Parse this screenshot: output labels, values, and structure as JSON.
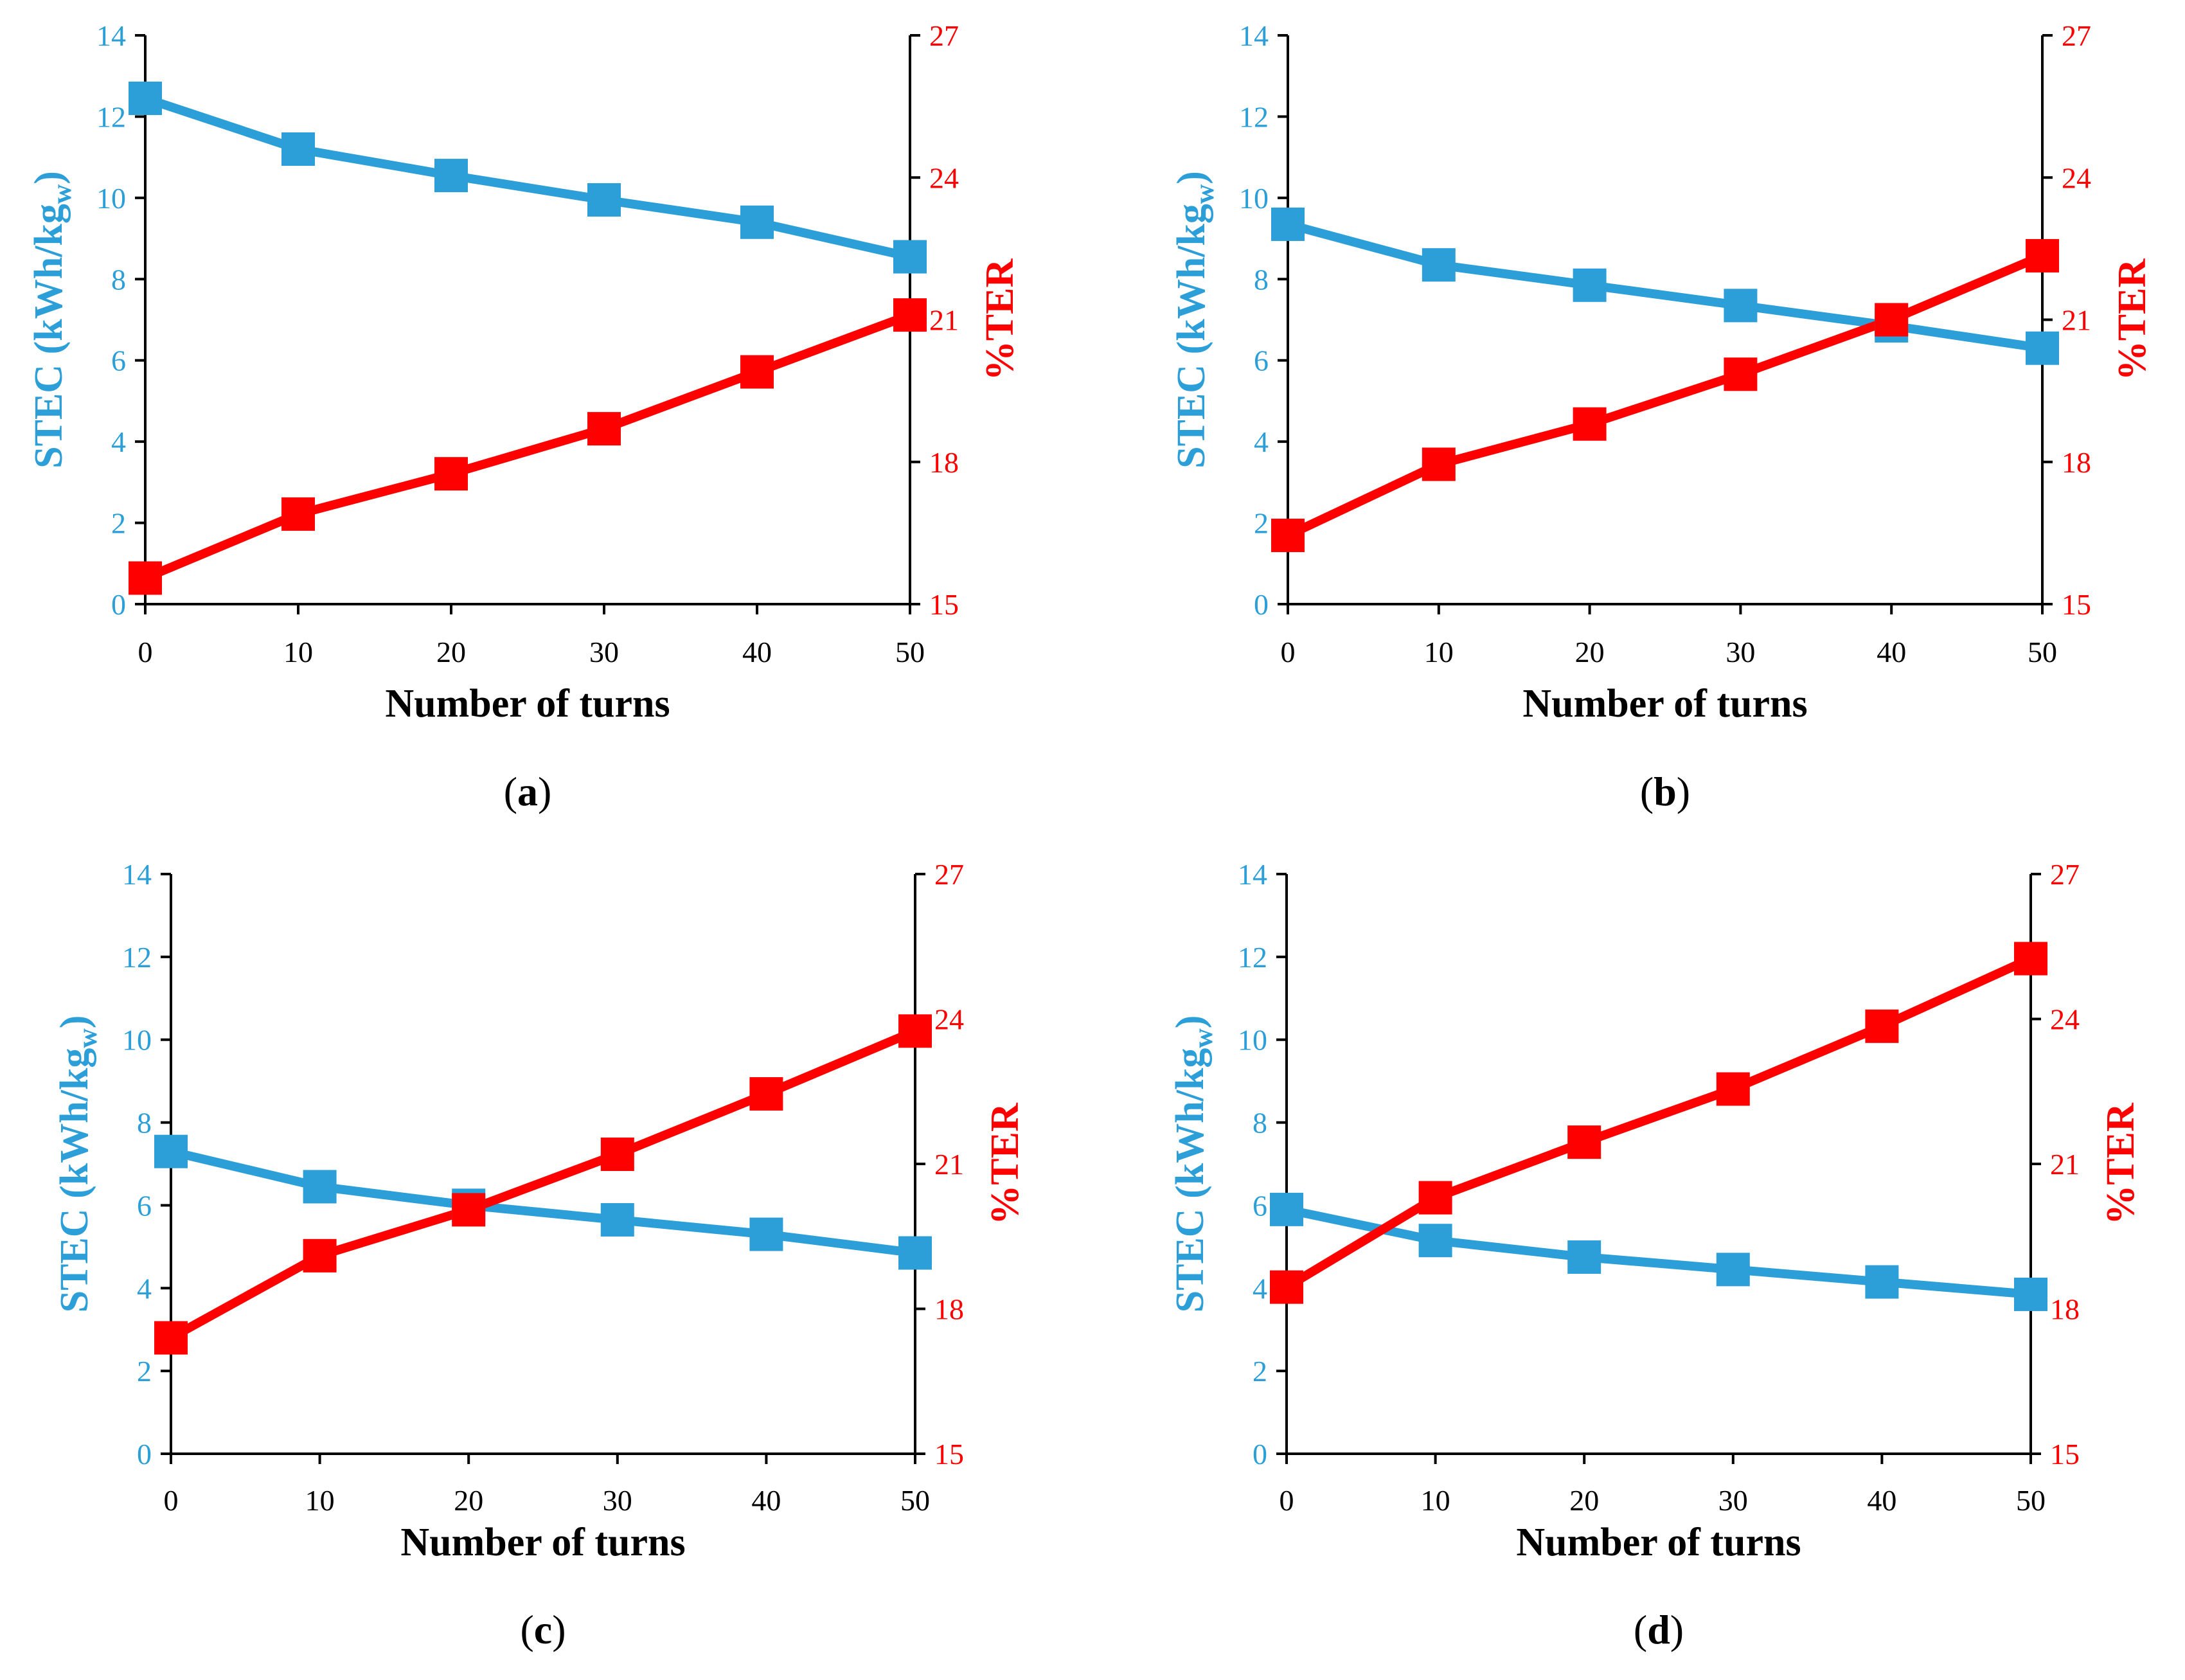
{
  "figure": {
    "colors": {
      "stec": "#2c9fd8",
      "ter": "#ff0000",
      "axis": "#000000"
    }
  },
  "chart_data": [
    {
      "panel_label": "(a)",
      "type": "line",
      "xlabel": "Number of turns",
      "ylabel_left": {
        "main": "STEC (kWh/kg",
        "sub": "w",
        "end": ")"
      },
      "ylabel_right": "%TER",
      "x": [
        0,
        10,
        20,
        30,
        40,
        50
      ],
      "xlim": [
        0,
        50
      ],
      "xticks": [
        0,
        10,
        20,
        30,
        40,
        50
      ],
      "ylim_left": [
        0,
        14
      ],
      "yticks_left": [
        0,
        2,
        4,
        6,
        8,
        10,
        12,
        14
      ],
      "ylim_right": [
        15,
        27
      ],
      "yticks_right": [
        15,
        18,
        21,
        24,
        27
      ],
      "series": [
        {
          "axis": "left",
          "color": "#2c9fd8",
          "marker": "square",
          "values": [
            12.45,
            11.2,
            10.55,
            9.95,
            9.4,
            8.55
          ]
        },
        {
          "axis": "right",
          "color": "#ff0000",
          "marker": "square",
          "values": [
            15.55,
            16.9,
            17.75,
            18.7,
            19.9,
            21.1
          ]
        }
      ]
    },
    {
      "panel_label": "(b)",
      "type": "line",
      "xlabel": "Number of turns",
      "ylabel_left": {
        "main": "STEC (kWh/kg",
        "sub": "w",
        "end": ")"
      },
      "ylabel_right": "%TER",
      "x": [
        0,
        10,
        20,
        30,
        40,
        50
      ],
      "xlim": [
        0,
        50
      ],
      "xticks": [
        0,
        10,
        20,
        30,
        40,
        50
      ],
      "ylim_left": [
        0,
        14
      ],
      "yticks_left": [
        0,
        2,
        4,
        6,
        8,
        10,
        12,
        14
      ],
      "ylim_right": [
        15,
        27
      ],
      "yticks_right": [
        15,
        18,
        21,
        24,
        27
      ],
      "series": [
        {
          "axis": "left",
          "color": "#2c9fd8",
          "marker": "square",
          "values": [
            9.35,
            8.35,
            7.85,
            7.35,
            6.85,
            6.3
          ]
        },
        {
          "axis": "right",
          "color": "#ff0000",
          "marker": "square",
          "values": [
            16.45,
            17.95,
            18.8,
            19.85,
            21.0,
            22.35
          ]
        }
      ]
    },
    {
      "panel_label": "(c)",
      "type": "line",
      "xlabel": "Number of turns",
      "ylabel_left": {
        "main": "STEC (kWh/kg",
        "sub": "w",
        "end": ")"
      },
      "ylabel_right": "%TER",
      "x": [
        0,
        10,
        20,
        30,
        40,
        50
      ],
      "xlim": [
        0,
        50
      ],
      "xticks": [
        0,
        10,
        20,
        30,
        40,
        50
      ],
      "ylim_left": [
        0,
        14
      ],
      "yticks_left": [
        0,
        2,
        4,
        6,
        8,
        10,
        12,
        14
      ],
      "ylim_right": [
        15,
        27
      ],
      "yticks_right": [
        15,
        18,
        21,
        24,
        27
      ],
      "series": [
        {
          "axis": "left",
          "color": "#2c9fd8",
          "marker": "square",
          "values": [
            7.3,
            6.45,
            6.0,
            5.65,
            5.3,
            4.85
          ]
        },
        {
          "axis": "right",
          "color": "#ff0000",
          "marker": "square",
          "values": [
            17.4,
            19.1,
            20.05,
            21.2,
            22.45,
            23.75
          ]
        }
      ]
    },
    {
      "panel_label": "(d)",
      "type": "line",
      "xlabel": "Number of turns",
      "ylabel_left": {
        "main": "STEC (kWh/kg",
        "sub": "w",
        "end": ")"
      },
      "ylabel_right": "%TER",
      "x": [
        0,
        10,
        20,
        30,
        40,
        50
      ],
      "xlim": [
        0,
        50
      ],
      "xticks": [
        0,
        10,
        20,
        30,
        40,
        50
      ],
      "ylim_left": [
        0,
        14
      ],
      "yticks_left": [
        0,
        2,
        4,
        6,
        8,
        10,
        12,
        14
      ],
      "ylim_right": [
        15,
        27
      ],
      "yticks_right": [
        15,
        18,
        21,
        24,
        27
      ],
      "series": [
        {
          "axis": "left",
          "color": "#2c9fd8",
          "marker": "square",
          "values": [
            5.9,
            5.15,
            4.75,
            4.45,
            4.15,
            3.85
          ]
        },
        {
          "axis": "right",
          "color": "#ff0000",
          "marker": "square",
          "values": [
            18.45,
            20.3,
            21.45,
            22.55,
            23.85,
            25.25
          ]
        }
      ]
    }
  ]
}
